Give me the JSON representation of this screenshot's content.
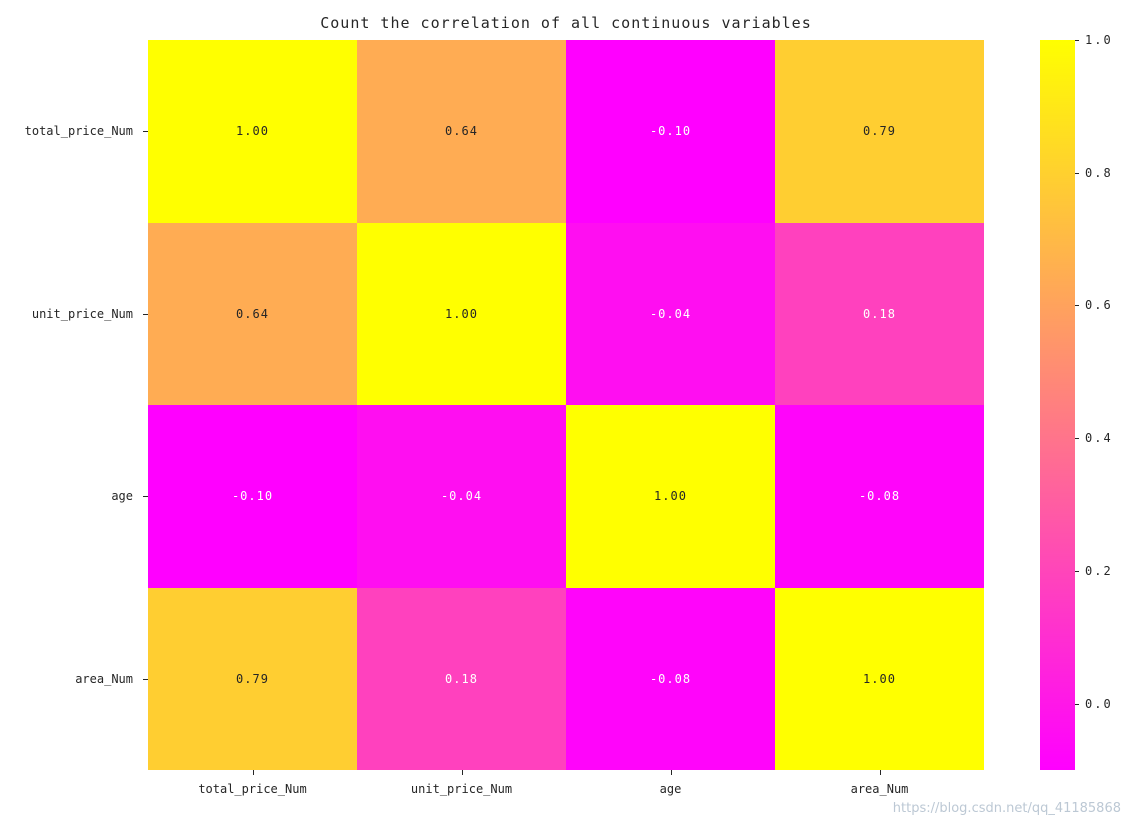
{
  "chart_data": {
    "type": "heatmap",
    "title": "Count the correlation of all continuous variables",
    "categories": [
      "total_price_Num",
      "unit_price_Num",
      "age",
      "area_Num"
    ],
    "matrix": [
      [
        1.0,
        0.64,
        -0.1,
        0.79
      ],
      [
        0.64,
        1.0,
        -0.04,
        0.18
      ],
      [
        -0.1,
        -0.04,
        1.0,
        -0.08
      ],
      [
        0.79,
        0.18,
        -0.08,
        1.0
      ]
    ],
    "cell_labels": [
      [
        "1.00",
        "0.64",
        "-0.10",
        "0.79"
      ],
      [
        "0.64",
        "1.00",
        "-0.04",
        "0.18"
      ],
      [
        "-0.10",
        "-0.04",
        "1.00",
        "-0.08"
      ],
      [
        "0.79",
        "0.18",
        "-0.08",
        "1.00"
      ]
    ],
    "colormap": "spring",
    "vmin": -0.1,
    "vmax": 1.0,
    "colors": {
      "low": "#ff00ff",
      "high": "#ffff00"
    },
    "colorbar_ticks": [
      {
        "value": 1.0,
        "label": "1.0"
      },
      {
        "value": 0.8,
        "label": "0.8"
      },
      {
        "value": 0.6,
        "label": "0.6"
      },
      {
        "value": 0.4,
        "label": "0.4"
      },
      {
        "value": 0.2,
        "label": "0.2"
      },
      {
        "value": 0.0,
        "label": "0.0"
      }
    ],
    "legend_position": "right",
    "grid": false
  },
  "watermark": "https://blog.csdn.net/qq_41185868"
}
